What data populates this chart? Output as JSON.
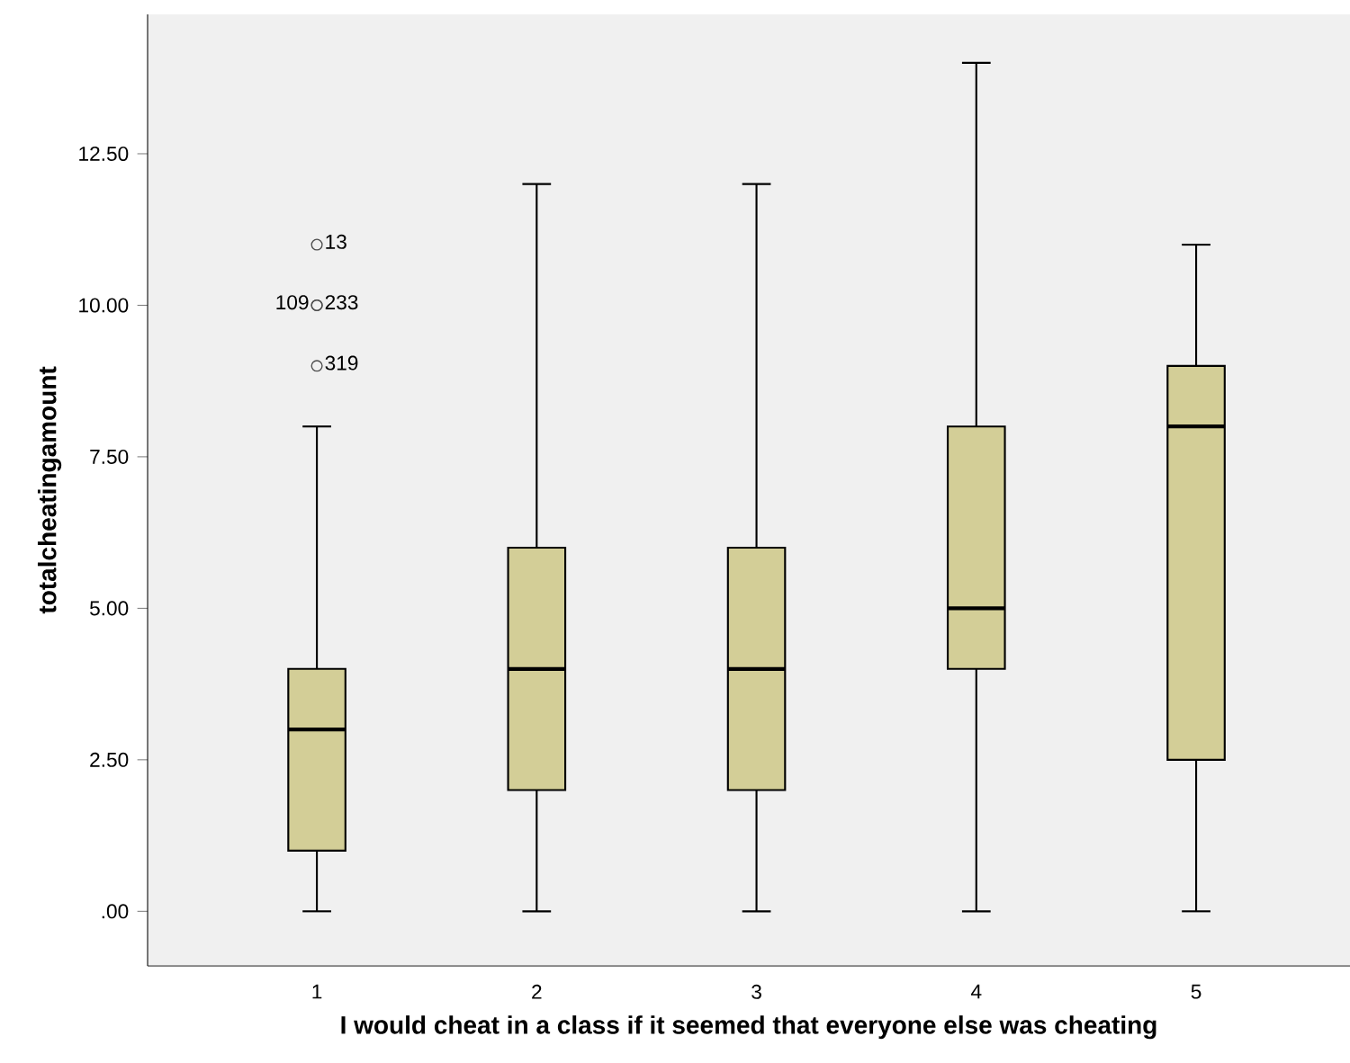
{
  "chart_data": {
    "type": "box",
    "xlabel": "I would cheat in a class if it seemed that everyone else was cheating",
    "ylabel": "totalcheatingamount",
    "categories": [
      "1",
      "2",
      "3",
      "4",
      "5"
    ],
    "color": "#d3ce97",
    "boxes": [
      {
        "low": 0,
        "q1": 1,
        "median": 3,
        "q3": 4,
        "high": 8,
        "outliers": [
          11,
          10,
          10,
          9
        ]
      },
      {
        "low": 0,
        "q1": 2,
        "median": 4,
        "q3": 6,
        "high": 12
      },
      {
        "low": 0,
        "q1": 2,
        "median": 4,
        "q3": 6,
        "high": 12
      },
      {
        "low": 0,
        "q1": 4,
        "median": 5,
        "q3": 8,
        "high": 14
      },
      {
        "low": 0,
        "q1": 2.5,
        "median": 8,
        "q3": 9,
        "high": 11
      }
    ],
    "ylim": [
      -0.9,
      14.8
    ],
    "yticks": [
      {
        "value": 0,
        "label": ".00"
      },
      {
        "value": 2.5,
        "label": "2.50"
      },
      {
        "value": 5,
        "label": "5.00"
      },
      {
        "value": 7.5,
        "label": "7.50"
      },
      {
        "value": 10,
        "label": "10.00"
      },
      {
        "value": 12.5,
        "label": "12.50"
      }
    ],
    "annotations": [
      "13",
      "109",
      "233",
      "319"
    ],
    "grid": false
  }
}
